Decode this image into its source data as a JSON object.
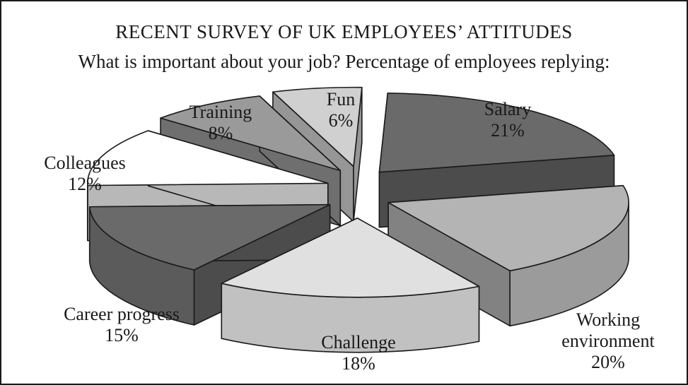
{
  "chart_data": {
    "type": "pie",
    "title": "RECENT SURVEY OF UK EMPLOYEES’ ATTITUDES",
    "subtitle": "What is important about your job? Percentage of employees replying:",
    "categories": [
      "Salary",
      "Working environment",
      "Challenge",
      "Career progress",
      "Colleagues",
      "Training",
      "Fun"
    ],
    "values": [
      21,
      20,
      18,
      15,
      12,
      8,
      6
    ],
    "value_labels": [
      "21%",
      "20%",
      "18%",
      "15%",
      "12%",
      "8%",
      "6%"
    ],
    "label_lines": [
      [
        "Salary"
      ],
      [
        "Working",
        "environment"
      ],
      [
        "Challenge"
      ],
      [
        "Career progress"
      ],
      [
        "Colleagues"
      ],
      [
        "Training"
      ],
      [
        "Fun"
      ]
    ],
    "exploded": true,
    "three_d": true
  },
  "colors": {
    "Salary": "#6a6a6a",
    "Working environment": "#b4b4b4",
    "Challenge": "#e0e0e0",
    "Career progress": "#6a6a6a",
    "Colleagues": "#ffffff",
    "Training": "#9a9a9a",
    "Fun": "#d0d0d0",
    "outline": "#1a1a1a"
  }
}
